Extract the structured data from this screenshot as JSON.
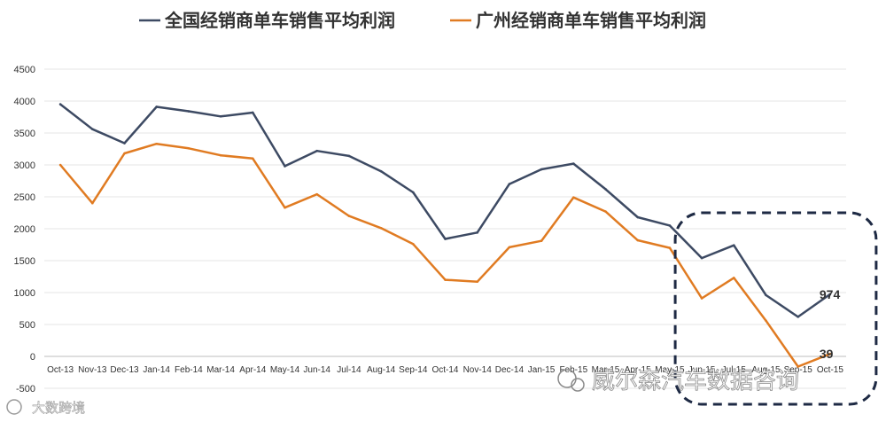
{
  "chart_data": {
    "type": "line",
    "categories": [
      "Oct-13",
      "Nov-13",
      "Dec-13",
      "Jan-14",
      "Feb-14",
      "Mar-14",
      "Apr-14",
      "May-14",
      "Jun-14",
      "Jul-14",
      "Aug-14",
      "Sep-14",
      "Oct-14",
      "Nov-14",
      "Dec-14",
      "Jan-15",
      "Feb-15",
      "Mar-15",
      "Apr-15",
      "May-15",
      "Jun-15",
      "Jul-15",
      "Aug-15",
      "Sep-15",
      "Oct-15"
    ],
    "series": [
      {
        "name": "全国经销商单车销售平均利润",
        "color": "#3d4a63",
        "values": [
          3950,
          3560,
          3340,
          3910,
          3840,
          3760,
          3820,
          2980,
          3220,
          3140,
          2900,
          2570,
          1840,
          1940,
          2700,
          2930,
          3020,
          2620,
          2180,
          2050,
          1540,
          1740,
          960,
          620,
          974
        ]
      },
      {
        "name": "广州经销商单车销售平均利润",
        "color": "#e07b22",
        "values": [
          3000,
          2400,
          3180,
          3330,
          3260,
          3150,
          3100,
          2330,
          2540,
          2200,
          2010,
          1760,
          1200,
          1170,
          1710,
          1810,
          2490,
          2270,
          1820,
          1700,
          910,
          1230,
          560,
          -160,
          39
        ]
      }
    ],
    "ylim": [
      -500,
      4500
    ],
    "yticks": [
      -500,
      0,
      500,
      1000,
      1500,
      2000,
      2500,
      3000,
      3500,
      4000,
      4500
    ],
    "grid": true,
    "legend_position": "top",
    "annotations": [
      {
        "text": "974",
        "series": 0,
        "index": 24
      },
      {
        "text": "39",
        "series": 1,
        "index": 24
      }
    ],
    "highlight_box": {
      "from_index": 20,
      "to_index": 24
    }
  },
  "watermarks": {
    "bottom_left": "大数跨境",
    "bottom_right": "威尔森汽车数据咨询"
  }
}
